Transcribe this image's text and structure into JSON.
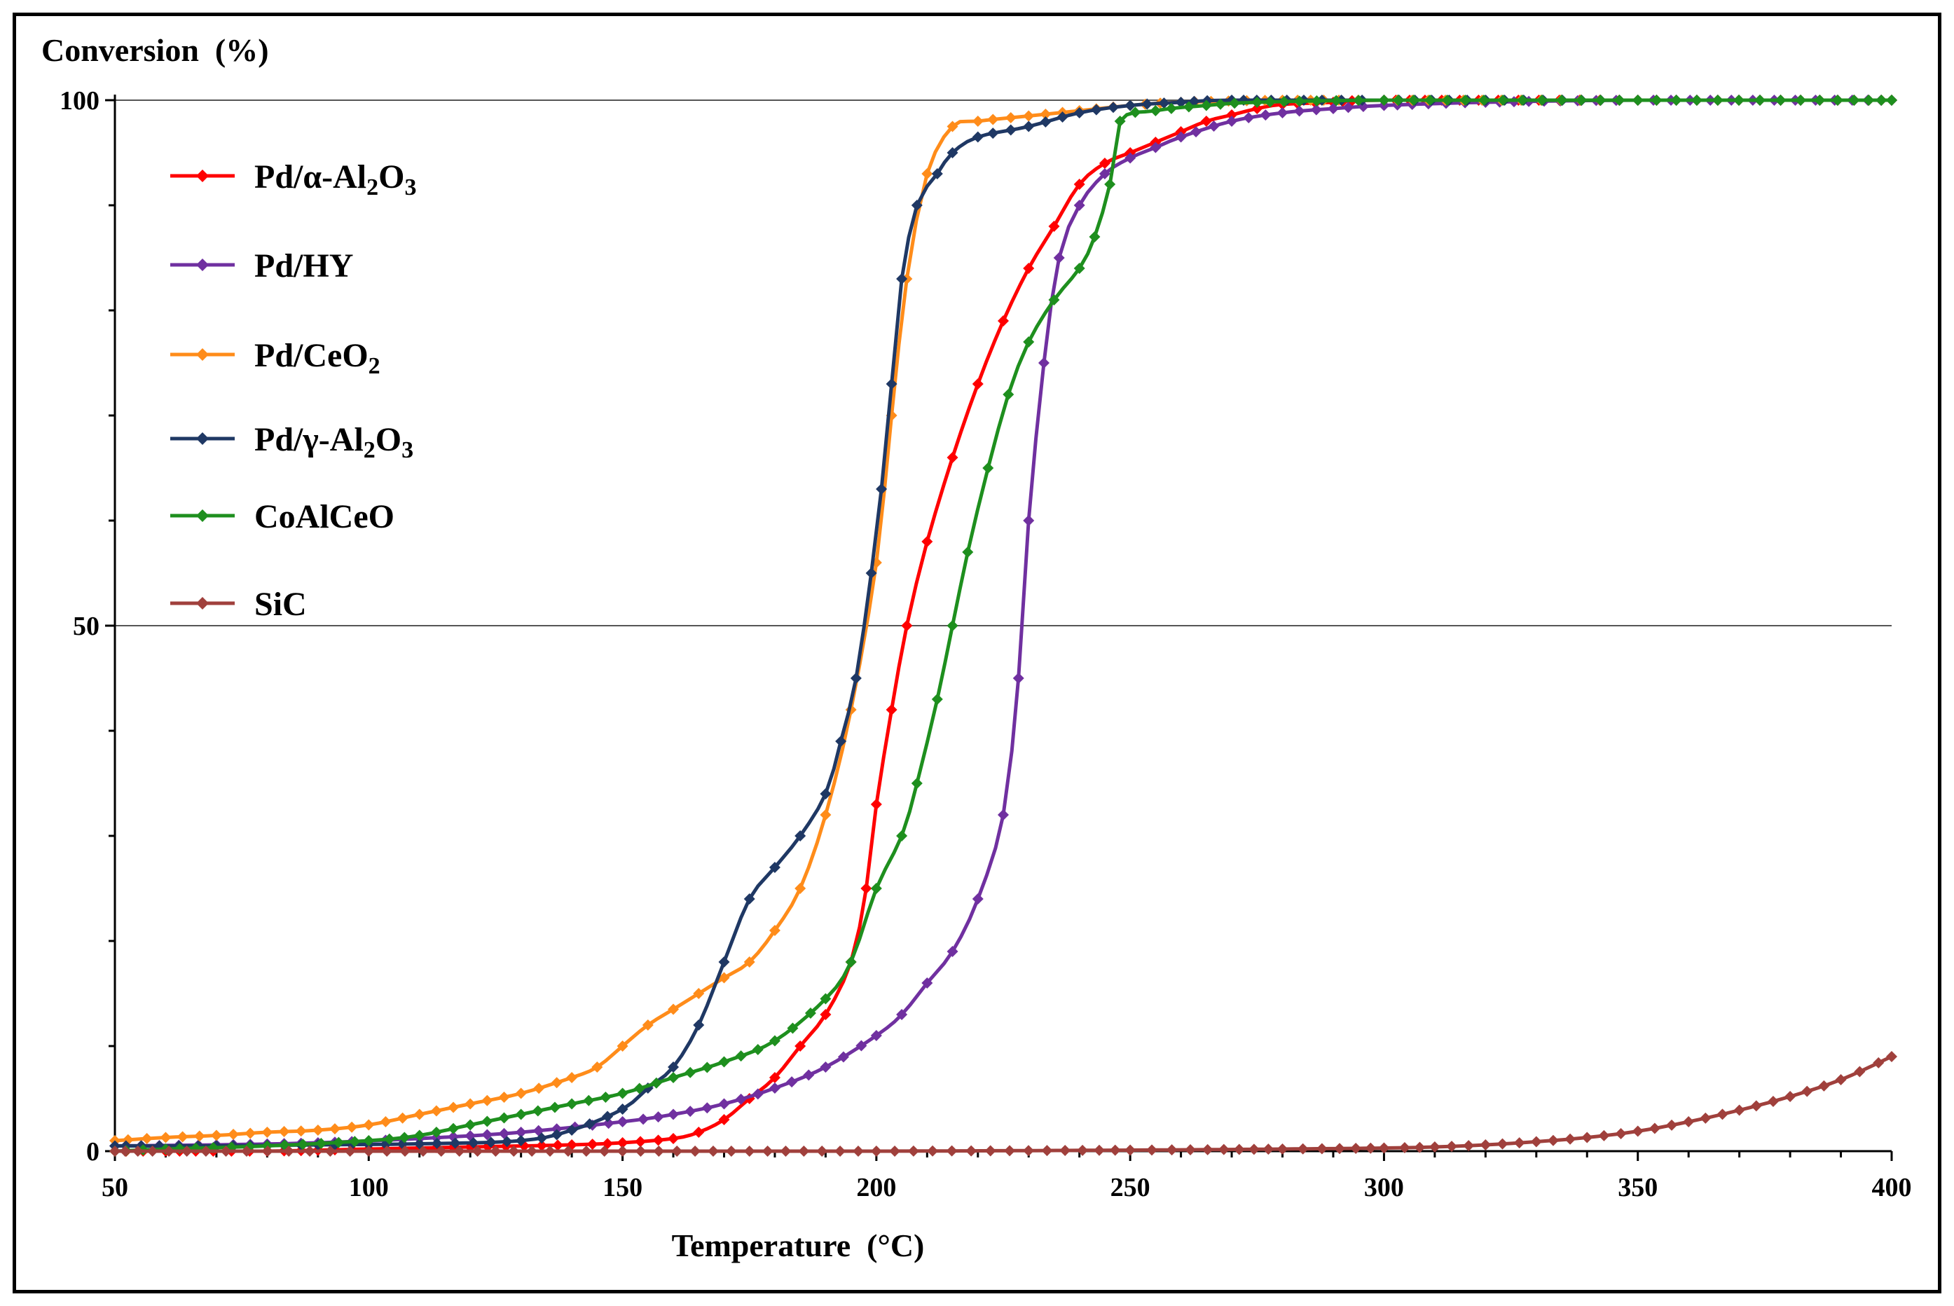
{
  "chart_data": {
    "type": "line",
    "title": "",
    "xlabel": "Temperature  (°C)",
    "ylabel": "Conversion  (%)",
    "xlim": [
      50,
      400
    ],
    "ylim": [
      0,
      100
    ],
    "x_ticks": [
      "50",
      "100",
      "150",
      "200",
      "250",
      "300",
      "350",
      "400"
    ],
    "y_ticks": [
      "0",
      "50",
      "100"
    ],
    "grid": "horizontal lines at 50 and 100",
    "legend_position": "top-left",
    "series": [
      {
        "name": "Pd/α-Al2O3",
        "label_main": "Pd/α-Al",
        "label_sub1": "2",
        "label_mid": "O",
        "label_sub2": "3",
        "color": "#ff0000",
        "points": [
          [
            50,
            0
          ],
          [
            60,
            0
          ],
          [
            80,
            0
          ],
          [
            100,
            0.2
          ],
          [
            120,
            0.4
          ],
          [
            140,
            0.6
          ],
          [
            150,
            0.8
          ],
          [
            160,
            1.2
          ],
          [
            165,
            1.8
          ],
          [
            170,
            3
          ],
          [
            175,
            5
          ],
          [
            180,
            7
          ],
          [
            185,
            10
          ],
          [
            190,
            13
          ],
          [
            195,
            18
          ],
          [
            198,
            25
          ],
          [
            200,
            33
          ],
          [
            203,
            42
          ],
          [
            206,
            50
          ],
          [
            210,
            58
          ],
          [
            215,
            66
          ],
          [
            220,
            73
          ],
          [
            225,
            79
          ],
          [
            230,
            84
          ],
          [
            235,
            88
          ],
          [
            240,
            92
          ],
          [
            245,
            94
          ],
          [
            250,
            95
          ],
          [
            255,
            96
          ],
          [
            260,
            97
          ],
          [
            265,
            98
          ],
          [
            270,
            98.6
          ],
          [
            275,
            99.2
          ],
          [
            280,
            99.6
          ],
          [
            290,
            99.8
          ],
          [
            300,
            100
          ],
          [
            350,
            100
          ],
          [
            400,
            100
          ]
        ]
      },
      {
        "name": "Pd/HY",
        "label_main": "Pd/HY",
        "label_sub1": "",
        "label_mid": "",
        "label_sub2": "",
        "color": "#7030a0",
        "points": [
          [
            50,
            0.5
          ],
          [
            70,
            0.6
          ],
          [
            90,
            0.8
          ],
          [
            110,
            1.2
          ],
          [
            130,
            1.8
          ],
          [
            150,
            2.8
          ],
          [
            160,
            3.5
          ],
          [
            170,
            4.5
          ],
          [
            180,
            6
          ],
          [
            190,
            8
          ],
          [
            200,
            11
          ],
          [
            205,
            13
          ],
          [
            210,
            16
          ],
          [
            215,
            19
          ],
          [
            220,
            24
          ],
          [
            225,
            32
          ],
          [
            228,
            45
          ],
          [
            230,
            60
          ],
          [
            233,
            75
          ],
          [
            236,
            85
          ],
          [
            240,
            90
          ],
          [
            245,
            93
          ],
          [
            250,
            94.5
          ],
          [
            255,
            95.5
          ],
          [
            260,
            96.5
          ],
          [
            270,
            98
          ],
          [
            280,
            98.8
          ],
          [
            290,
            99.2
          ],
          [
            300,
            99.5
          ],
          [
            320,
            99.8
          ],
          [
            350,
            100
          ],
          [
            400,
            100
          ]
        ]
      },
      {
        "name": "Pd/CeO2",
        "label_main": "Pd/CeO",
        "label_sub1": "2",
        "label_mid": "",
        "label_sub2": "",
        "color": "#ff8c1a",
        "points": [
          [
            50,
            1
          ],
          [
            60,
            1.3
          ],
          [
            70,
            1.5
          ],
          [
            80,
            1.8
          ],
          [
            90,
            2
          ],
          [
            100,
            2.5
          ],
          [
            110,
            3.5
          ],
          [
            120,
            4.5
          ],
          [
            130,
            5.5
          ],
          [
            140,
            7
          ],
          [
            145,
            8
          ],
          [
            150,
            10
          ],
          [
            155,
            12
          ],
          [
            160,
            13.5
          ],
          [
            165,
            15
          ],
          [
            170,
            16.5
          ],
          [
            175,
            18
          ],
          [
            180,
            21
          ],
          [
            185,
            25
          ],
          [
            190,
            32
          ],
          [
            195,
            42
          ],
          [
            200,
            56
          ],
          [
            203,
            70
          ],
          [
            206,
            83
          ],
          [
            210,
            93
          ],
          [
            215,
            97.5
          ],
          [
            220,
            98
          ],
          [
            230,
            98.5
          ],
          [
            240,
            99
          ],
          [
            250,
            99.5
          ],
          [
            260,
            99.8
          ],
          [
            280,
            100
          ],
          [
            300,
            100
          ],
          [
            350,
            100
          ],
          [
            400,
            100
          ]
        ]
      },
      {
        "name": "Pd/γ-Al2O3",
        "label_main": "Pd/γ-Al",
        "label_sub1": "2",
        "label_mid": "O",
        "label_sub2": "3",
        "color": "#1f3864",
        "points": [
          [
            50,
            0.5
          ],
          [
            70,
            0.5
          ],
          [
            90,
            0.6
          ],
          [
            110,
            0.7
          ],
          [
            130,
            1
          ],
          [
            140,
            2
          ],
          [
            150,
            4
          ],
          [
            155,
            6
          ],
          [
            160,
            8
          ],
          [
            165,
            12
          ],
          [
            170,
            18
          ],
          [
            175,
            24
          ],
          [
            180,
            27
          ],
          [
            185,
            30
          ],
          [
            190,
            34
          ],
          [
            193,
            39
          ],
          [
            196,
            45
          ],
          [
            199,
            55
          ],
          [
            201,
            63
          ],
          [
            203,
            73
          ],
          [
            205,
            83
          ],
          [
            208,
            90
          ],
          [
            212,
            93
          ],
          [
            215,
            95
          ],
          [
            220,
            96.5
          ],
          [
            230,
            97.5
          ],
          [
            240,
            98.8
          ],
          [
            250,
            99.5
          ],
          [
            260,
            99.8
          ],
          [
            270,
            100
          ],
          [
            300,
            100
          ],
          [
            350,
            100
          ],
          [
            400,
            100
          ]
        ]
      },
      {
        "name": "CoAlCeO",
        "label_main": "CoAlCeO",
        "label_sub1": "",
        "label_mid": "",
        "label_sub2": "",
        "color": "#1e8f1e",
        "points": [
          [
            50,
            0
          ],
          [
            60,
            0.2
          ],
          [
            80,
            0.5
          ],
          [
            100,
            1
          ],
          [
            110,
            1.5
          ],
          [
            120,
            2.5
          ],
          [
            130,
            3.5
          ],
          [
            140,
            4.5
          ],
          [
            150,
            5.5
          ],
          [
            160,
            7
          ],
          [
            170,
            8.5
          ],
          [
            180,
            10.5
          ],
          [
            190,
            14.5
          ],
          [
            195,
            18
          ],
          [
            200,
            25
          ],
          [
            205,
            30
          ],
          [
            208,
            35
          ],
          [
            212,
            43
          ],
          [
            215,
            50
          ],
          [
            218,
            57
          ],
          [
            222,
            65
          ],
          [
            226,
            72
          ],
          [
            230,
            77
          ],
          [
            235,
            81
          ],
          [
            240,
            84
          ],
          [
            243,
            87
          ],
          [
            246,
            92
          ],
          [
            248,
            98
          ],
          [
            255,
            99
          ],
          [
            265,
            99.5
          ],
          [
            275,
            99.8
          ],
          [
            300,
            100
          ],
          [
            350,
            100
          ],
          [
            400,
            100
          ]
        ]
      },
      {
        "name": "SiC",
        "label_main": "SiC",
        "label_sub1": "",
        "label_mid": "",
        "label_sub2": "",
        "color": "#a0403c",
        "points": [
          [
            50,
            0
          ],
          [
            100,
            0
          ],
          [
            150,
            0
          ],
          [
            200,
            0
          ],
          [
            250,
            0.1
          ],
          [
            280,
            0.2
          ],
          [
            300,
            0.3
          ],
          [
            310,
            0.4
          ],
          [
            320,
            0.6
          ],
          [
            330,
            0.9
          ],
          [
            340,
            1.3
          ],
          [
            350,
            1.9
          ],
          [
            360,
            2.8
          ],
          [
            370,
            3.9
          ],
          [
            380,
            5.2
          ],
          [
            390,
            6.8
          ],
          [
            400,
            9
          ]
        ]
      }
    ]
  }
}
